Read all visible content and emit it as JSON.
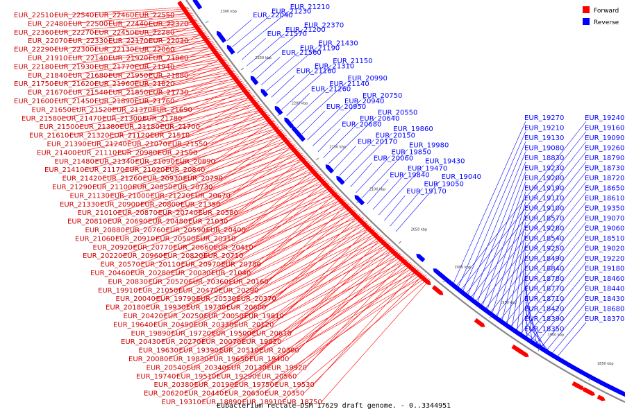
{
  "title": "Eubacterium rectale DSM 17629 draft genome. - 0..3344951",
  "legend": [
    {
      "name": "Forward",
      "color": "#ff0000"
    },
    {
      "name": "Reverse",
      "color": "#0000ff"
    }
  ],
  "ticks": [
    "2300 kbp",
    "2250 kbp",
    "2200 kbp",
    "2150 kbp",
    "2100 kbp",
    "2050 kbp",
    "2000 kbp",
    "1950 kbp",
    "1900 kbp",
    "1850 kbp"
  ],
  "forward_labels": [
    "EUR_22510",
    "EUR_22540",
    "EUR_22460",
    "EUR_22550",
    "EUR_22480",
    "EUR_22500",
    "EUR_22440",
    "EUR_22320",
    "EUR_22360",
    "EUR_22270",
    "EUR_22450",
    "EUR_22280",
    "EUR_22070",
    "EUR_22330",
    "EUR_22170",
    "EUR_22030",
    "EUR_22290",
    "EUR_22300",
    "EUR_22130",
    "EUR_22060",
    "EUR_21910",
    "EUR_22140",
    "EUR_21920",
    "EUR_21860",
    "EUR_22180",
    "EUR_21930",
    "EUR_21770",
    "EUR_21940",
    "EUR_21840",
    "EUR_21680",
    "EUR_21950",
    "EUR_21880",
    "EUR_21750",
    "EUR_21620",
    "EUR_21960",
    "EUR_21820",
    "EUR_21670",
    "EUR_21540",
    "EUR_21850",
    "EUR_21730",
    "EUR_21600",
    "EUR_21450",
    "EUR_21890",
    "EUR_21760",
    "EUR_21650",
    "EUR_21520",
    "EUR_21370",
    "EUR_21690",
    "EUR_21580",
    "EUR_21470",
    "EUR_21300",
    "EUR_21780",
    "EUR_21500",
    "EUR_21380",
    "EUR_21180",
    "EUR_21700",
    "EUR_21610",
    "EUR_21320",
    "EUR_21120",
    "EUR_21510",
    "EUR_21390",
    "EUR_21240",
    "EUR_21070",
    "EUR_21550",
    "EUR_21400",
    "EUR_21110",
    "EUR_20980",
    "EUR_21590",
    "EUR_21480",
    "EUR_21340",
    "EUR_21090",
    "EUR_20890",
    "EUR_21410",
    "EUR_21170",
    "EUR_21020",
    "EUR_20840",
    "EUR_21420",
    "EUR_21260",
    "EUR_20930",
    "EUR_20790",
    "EUR_21290",
    "EUR_21100",
    "EUR_20850",
    "EUR_20730",
    "EUR_21130",
    "EUR_21000",
    "EUR_21220",
    "EUR_20670",
    "EUR_21330",
    "EUR_20900",
    "EUR_20800",
    "EUR_21350",
    "EUR_21010",
    "EUR_20870",
    "EUR_20740",
    "EUR_20580",
    "EUR_20810",
    "EUR_20690",
    "EUR_20480",
    "EUR_21030",
    "EUR_20880",
    "EUR_20760",
    "EUR_20590",
    "EUR_20400",
    "EUR_21060",
    "EUR_20910",
    "EUR_20500",
    "EUR_20310",
    "EUR_20920",
    "EUR_20770",
    "EUR_20660",
    "EUR_20410",
    "EUR_20220",
    "EUR_20960",
    "EUR_20820",
    "EUR_20710",
    "EUR_20570",
    "EUR_20110",
    "EUR_20970",
    "EUR_20780",
    "EUR_20460",
    "EUR_20280",
    "EUR_20030",
    "EUR_21040",
    "EUR_20830",
    "EUR_20520",
    "EUR_20360",
    "EUR_20160",
    "EUR_19910",
    "EUR_21050",
    "EUR_20470",
    "EUR_20290",
    "EUR_20040",
    "EUR_19790",
    "EUR_20530",
    "EUR_20370",
    "EUR_20180",
    "EUR_19930",
    "EUR_19730",
    "EUR_20600",
    "EUR_20420",
    "EUR_20250",
    "EUR_20050",
    "EUR_19810",
    "EUR_19640",
    "EUR_20490",
    "EUR_20330",
    "EUR_20120",
    "EUR_19890",
    "EUR_19720",
    "EUR_19500",
    "EUR_20610",
    "EUR_20430",
    "EUR_20270",
    "EUR_20070",
    "EUR_19820",
    "EUR_19630",
    "EUR_19390",
    "EUR_20510",
    "EUR_20300",
    "EUR_20080",
    "EUR_19830",
    "EUR_19650",
    "EUR_19400",
    "EUR_20540",
    "EUR_20340",
    "EUR_20130",
    "EUR_19920",
    "EUR_19740",
    "EUR_19510",
    "EUR_19290",
    "EUR_20560",
    "EUR_20380",
    "EUR_20190",
    "EUR_19750",
    "EUR_19530",
    "EUR_20620",
    "EUR_20440",
    "EUR_20630",
    "EUR_20350",
    "EUR_19310",
    "EUR_18890",
    "EUR_18910",
    "EUR_18750"
  ],
  "reverse_labels": [
    "EUR_22120",
    "EUR_22110",
    "EUR_22090",
    "EUR_22100",
    "EUR_22380",
    "EUR_22050",
    "EUR_22040",
    "EUR_21230",
    "EUR_21210",
    "EUR_21570",
    "EUR_21200",
    "EUR_22370",
    "EUR_21560",
    "EUR_21190",
    "EUR_21430",
    "EUR_21160",
    "EUR_21310",
    "EUR_21150",
    "EUR_21260",
    "EUR_21140",
    "EUR_20990",
    "EUR_20950",
    "EUR_20940",
    "EUR_20750",
    "EUR_20680",
    "EUR_20640",
    "EUR_20550",
    "EUR_20170",
    "EUR_20150",
    "EUR_19860",
    "EUR_20060",
    "EUR_19850",
    "EUR_19980",
    "EUR_19840",
    "EUR_19470",
    "EUR_19430",
    "EUR_19170",
    "EUR_19050",
    "EUR_19040",
    "EUR_19270",
    "EUR_19240",
    "EUR_19210",
    "EUR_19160",
    "EUR_19130",
    "EUR_19090",
    "EUR_19080",
    "EUR_19260",
    "EUR_18830",
    "EUR_18790",
    "EUR_19230",
    "EUR_18730",
    "EUR_19200",
    "EUR_18720",
    "EUR_19190",
    "EUR_18650",
    "EUR_19110",
    "EUR_18610",
    "EUR_19100",
    "EUR_19350",
    "EUR_18570",
    "EUR_19070",
    "EUR_19280",
    "EUR_19060",
    "EUR_18540",
    "EUR_18510",
    "EUR_19250",
    "EUR_19020",
    "EUR_18490",
    "EUR_19220",
    "EUR_18840",
    "EUR_19180",
    "EUR_18780",
    "EUR_18460",
    "EUR_18770",
    "EUR_18440",
    "EUR_18710",
    "EUR_18430",
    "EUR_18420",
    "EUR_18680",
    "EUR_18390",
    "EUR_18370",
    "EUR_18350"
  ]
}
